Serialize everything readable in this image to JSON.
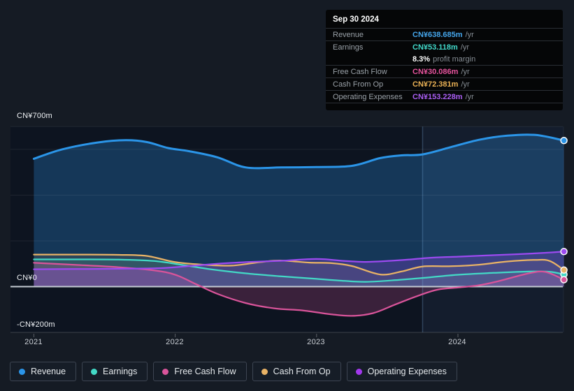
{
  "tooltip": {
    "date": "Sep 30 2024",
    "rows": [
      {
        "label": "Revenue",
        "value": "CN¥638.685m",
        "suffix": "/yr",
        "color": "#45a6ec"
      },
      {
        "label": "Earnings",
        "value": "CN¥53.118m",
        "suffix": "/yr",
        "color": "#41d8c9"
      },
      {
        "label": "",
        "value": "8.3%",
        "suffix": "profit margin",
        "color": "#ffffff"
      },
      {
        "label": "Free Cash Flow",
        "value": "CN¥30.086m",
        "suffix": "/yr",
        "color": "#e8549e"
      },
      {
        "label": "Cash From Op",
        "value": "CN¥72.381m",
        "suffix": "/yr",
        "color": "#eab155"
      },
      {
        "label": "Operating Expenses",
        "value": "CN¥153.228m",
        "suffix": "/yr",
        "color": "#a95ef2"
      }
    ]
  },
  "legend": [
    {
      "label": "Revenue",
      "color": "#2b95e8"
    },
    {
      "label": "Earnings",
      "color": "#43d9c6"
    },
    {
      "label": "Free Cash Flow",
      "color": "#d9549a"
    },
    {
      "label": "Cash From Op",
      "color": "#e9b366"
    },
    {
      "label": "Operating Expenses",
      "color": "#a238ed"
    }
  ],
  "chart_data": {
    "type": "area",
    "unit": "CN¥ millions per year",
    "ylim": [
      -200,
      700
    ],
    "x_range": [
      2021.0,
      2024.75
    ],
    "grid": true,
    "gridlines": [
      700,
      600,
      400,
      200,
      0,
      -200
    ],
    "highlight_period": {
      "from": 2023.75,
      "to": 2024.75
    },
    "y_ticks": [
      {
        "value": 700,
        "label": "CN¥700m"
      },
      {
        "value": 0,
        "label": "CN¥0"
      },
      {
        "value": -200,
        "label": "-CN¥200m"
      }
    ],
    "x_ticks": [
      {
        "year": 2021,
        "label": "2021"
      },
      {
        "year": 2022,
        "label": "2022"
      },
      {
        "year": 2023,
        "label": "2023"
      },
      {
        "year": 2024,
        "label": "2024"
      }
    ],
    "series": [
      {
        "name": "Revenue",
        "color": "#2b95e8",
        "last_value_label": "CN¥638.685m /yr",
        "points": [
          [
            2021.0,
            559
          ],
          [
            2021.2,
            600
          ],
          [
            2021.45,
            630
          ],
          [
            2021.65,
            640
          ],
          [
            2021.8,
            632
          ],
          [
            2021.95,
            606
          ],
          [
            2022.1,
            592
          ],
          [
            2022.3,
            565
          ],
          [
            2022.5,
            521
          ],
          [
            2022.75,
            521
          ],
          [
            2023.0,
            523
          ],
          [
            2023.25,
            528
          ],
          [
            2023.45,
            562
          ],
          [
            2023.6,
            574
          ],
          [
            2023.75,
            578
          ],
          [
            2023.95,
            610
          ],
          [
            2024.15,
            642
          ],
          [
            2024.35,
            660
          ],
          [
            2024.55,
            663
          ],
          [
            2024.75,
            638.7
          ]
        ]
      },
      {
        "name": "Earnings",
        "color": "#43d9c6",
        "last_value_label": "CN¥53.118m /yr",
        "points": [
          [
            2021.0,
            119
          ],
          [
            2021.3,
            119
          ],
          [
            2021.6,
            118
          ],
          [
            2021.85,
            112
          ],
          [
            2022.05,
            95
          ],
          [
            2022.25,
            76
          ],
          [
            2022.5,
            58
          ],
          [
            2022.75,
            45
          ],
          [
            2023.0,
            34
          ],
          [
            2023.2,
            25
          ],
          [
            2023.35,
            21
          ],
          [
            2023.55,
            28
          ],
          [
            2023.75,
            38
          ],
          [
            2024.0,
            52
          ],
          [
            2024.25,
            60
          ],
          [
            2024.5,
            66
          ],
          [
            2024.65,
            65
          ],
          [
            2024.75,
            53.1
          ]
        ]
      },
      {
        "name": "Free Cash Flow",
        "color": "#d9549a",
        "last_value_label": "CN¥30.086m /yr",
        "points": [
          [
            2021.0,
            104
          ],
          [
            2021.3,
            95
          ],
          [
            2021.6,
            85
          ],
          [
            2021.85,
            71
          ],
          [
            2022.0,
            52
          ],
          [
            2022.15,
            10
          ],
          [
            2022.3,
            -32
          ],
          [
            2022.5,
            -72
          ],
          [
            2022.7,
            -95
          ],
          [
            2022.9,
            -104
          ],
          [
            2023.1,
            -121
          ],
          [
            2023.25,
            -128
          ],
          [
            2023.4,
            -116
          ],
          [
            2023.55,
            -80
          ],
          [
            2023.7,
            -44
          ],
          [
            2023.85,
            -14
          ],
          [
            2024.0,
            -4
          ],
          [
            2024.15,
            6
          ],
          [
            2024.3,
            26
          ],
          [
            2024.5,
            58
          ],
          [
            2024.62,
            64
          ],
          [
            2024.75,
            30.1
          ]
        ]
      },
      {
        "name": "Cash From Op",
        "color": "#e9b366",
        "last_value_label": "CN¥72.381m /yr",
        "points": [
          [
            2021.0,
            140
          ],
          [
            2021.3,
            140
          ],
          [
            2021.6,
            139
          ],
          [
            2021.8,
            134
          ],
          [
            2022.0,
            107
          ],
          [
            2022.2,
            96
          ],
          [
            2022.4,
            92
          ],
          [
            2022.6,
            107
          ],
          [
            2022.75,
            114
          ],
          [
            2022.95,
            105
          ],
          [
            2023.1,
            103
          ],
          [
            2023.25,
            90
          ],
          [
            2023.45,
            53
          ],
          [
            2023.6,
            66
          ],
          [
            2023.75,
            88
          ],
          [
            2023.95,
            89
          ],
          [
            2024.15,
            96
          ],
          [
            2024.35,
            110
          ],
          [
            2024.55,
            117
          ],
          [
            2024.65,
            112
          ],
          [
            2024.75,
            72.4
          ]
        ]
      },
      {
        "name": "Operating Expenses",
        "color": "#9c4af0",
        "last_value_label": "CN¥153.228m /yr",
        "points": [
          [
            2021.0,
            76
          ],
          [
            2021.3,
            77
          ],
          [
            2021.6,
            78
          ],
          [
            2021.9,
            81
          ],
          [
            2022.1,
            90
          ],
          [
            2022.3,
            100
          ],
          [
            2022.5,
            107
          ],
          [
            2022.75,
            113
          ],
          [
            2023.0,
            121
          ],
          [
            2023.2,
            112
          ],
          [
            2023.35,
            108
          ],
          [
            2023.5,
            112
          ],
          [
            2023.65,
            118
          ],
          [
            2023.8,
            126
          ],
          [
            2024.0,
            131
          ],
          [
            2024.2,
            136
          ],
          [
            2024.4,
            141
          ],
          [
            2024.6,
            147
          ],
          [
            2024.75,
            153.2
          ]
        ]
      }
    ]
  }
}
